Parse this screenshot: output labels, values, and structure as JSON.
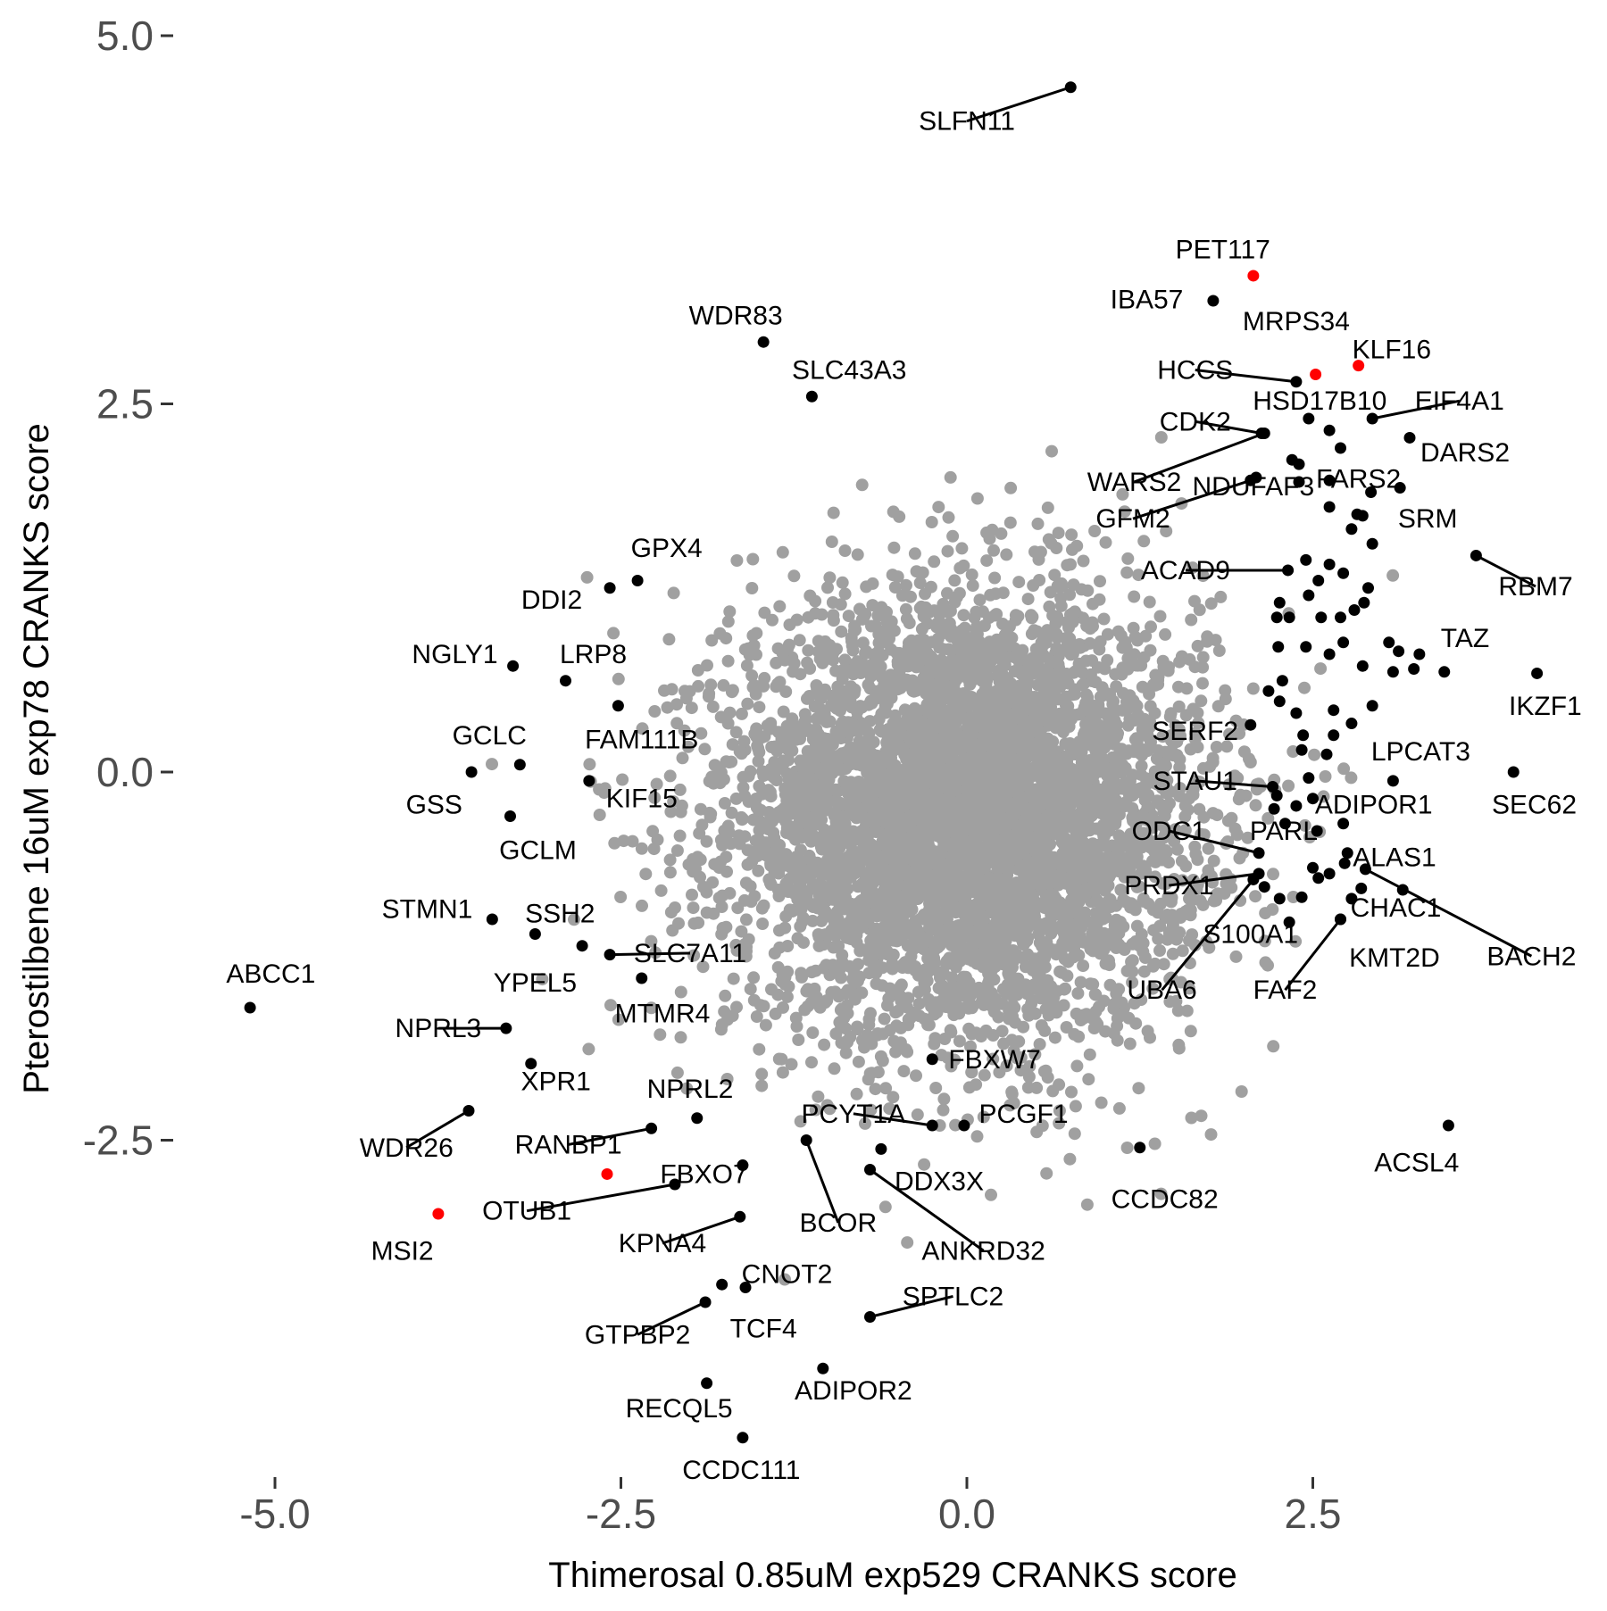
{
  "chart_data": {
    "type": "scatter",
    "title": "",
    "xlabel": "Thimerosal 0.85uM exp529 CRANKS score",
    "ylabel": "Pterostilbene 16uM exp78 CRANKS score",
    "xlim": [
      -5.2,
      4.2
    ],
    "ylim": [
      -4.85,
      5.0
    ],
    "xticks": [
      {
        "value": -5.0,
        "label": "-5.0"
      },
      {
        "value": -2.5,
        "label": "-2.5"
      },
      {
        "value": 0.0,
        "label": "0.0"
      },
      {
        "value": 2.5,
        "label": "2.5"
      }
    ],
    "yticks": [
      {
        "value": 5.0,
        "label": "5.0"
      },
      {
        "value": 2.5,
        "label": "2.5"
      },
      {
        "value": 0.0,
        "label": "0.0"
      },
      {
        "value": -2.5,
        "label": "-2.5"
      }
    ],
    "grid": false,
    "legend": "none",
    "colors": {
      "background": "#gray",
      "highlight": "#000000",
      "red": "#ff0000"
    },
    "background_cloud": {
      "description_color": "#a0a0a0",
      "center": [
        0,
        -0.3
      ],
      "sd": [
        0.85,
        0.75
      ]
    },
    "points": [
      {
        "name": "SLFN11",
        "x": 0.75,
        "y": 4.65,
        "color": "black",
        "lx": 0.0,
        "ly": 4.42
      },
      {
        "name": "PET117",
        "x": 2.07,
        "y": 3.37,
        "color": "red",
        "lx": 1.85,
        "ly": 3.55
      },
      {
        "name": "IBA57",
        "x": 1.78,
        "y": 3.2,
        "color": "black",
        "lx": 1.3,
        "ly": 3.21
      },
      {
        "name": "MRPS34",
        "x": 2.52,
        "y": 2.7,
        "color": "red",
        "lx": 2.38,
        "ly": 3.06
      },
      {
        "name": "KLF16",
        "x": 2.83,
        "y": 2.76,
        "color": "red",
        "lx": 3.07,
        "ly": 2.87
      },
      {
        "name": "WDR83",
        "x": -1.47,
        "y": 2.92,
        "color": "black",
        "lx": -1.67,
        "ly": 3.1
      },
      {
        "name": "SLC43A3",
        "x": -1.12,
        "y": 2.55,
        "color": "black",
        "lx": -0.85,
        "ly": 2.73
      },
      {
        "name": "HCCS",
        "x": 2.38,
        "y": 2.65,
        "color": "black",
        "lx": 1.65,
        "ly": 2.73
      },
      {
        "name": "HSD17B10",
        "x": 2.47,
        "y": 2.4,
        "color": "black",
        "lx": 2.55,
        "ly": 2.52
      },
      {
        "name": "EIF4A1",
        "x": 2.93,
        "y": 2.4,
        "color": "black",
        "lx": 3.56,
        "ly": 2.52
      },
      {
        "name": "CDK2",
        "x": 2.13,
        "y": 2.3,
        "color": "black",
        "lx": 1.65,
        "ly": 2.38
      },
      {
        "name": "DARS2",
        "x": 3.2,
        "y": 2.27,
        "color": "black",
        "lx": 3.6,
        "ly": 2.17
      },
      {
        "name": "WARS2",
        "x": 2.15,
        "y": 2.3,
        "color": "black",
        "lx": 1.21,
        "ly": 1.97
      },
      {
        "name": "NDUFAF3",
        "x": 2.09,
        "y": 2.0,
        "color": "black",
        "lx": 2.07,
        "ly": 1.94
      },
      {
        "name": "FARS2",
        "x": 3.13,
        "y": 1.93,
        "color": "black",
        "lx": 2.83,
        "ly": 1.99
      },
      {
        "name": "GFM2",
        "x": 2.05,
        "y": 1.98,
        "color": "black",
        "lx": 1.2,
        "ly": 1.72
      },
      {
        "name": "SRM",
        "x": 2.86,
        "y": 1.74,
        "color": "black",
        "lx": 3.33,
        "ly": 1.72
      },
      {
        "name": "ACAD9",
        "x": 2.32,
        "y": 1.37,
        "color": "black",
        "lx": 1.58,
        "ly": 1.37
      },
      {
        "name": "RBM7",
        "x": 3.68,
        "y": 1.47,
        "color": "black",
        "lx": 4.11,
        "ly": 1.26
      },
      {
        "name": "TAZ",
        "x": 3.27,
        "y": 0.8,
        "color": "black",
        "lx": 3.6,
        "ly": 0.91
      },
      {
        "name": "IKZF1",
        "x": 4.12,
        "y": 0.67,
        "color": "black",
        "lx": 4.18,
        "ly": 0.45
      },
      {
        "name": "GPX4",
        "x": -2.38,
        "y": 1.3,
        "color": "black",
        "lx": -2.17,
        "ly": 1.52
      },
      {
        "name": "DDI2",
        "x": -2.58,
        "y": 1.25,
        "color": "black",
        "lx": -3.0,
        "ly": 1.17
      },
      {
        "name": "NGLY1",
        "x": -3.28,
        "y": 0.72,
        "color": "black",
        "lx": -3.7,
        "ly": 0.8
      },
      {
        "name": "LRP8",
        "x": -2.9,
        "y": 0.62,
        "color": "black",
        "lx": -2.7,
        "ly": 0.8
      },
      {
        "name": "FAM111B",
        "x": -2.52,
        "y": 0.45,
        "color": "black",
        "lx": -2.35,
        "ly": 0.22
      },
      {
        "name": "GCLC",
        "x": -3.23,
        "y": 0.05,
        "color": "black",
        "lx": -3.45,
        "ly": 0.25
      },
      {
        "name": "GSS",
        "x": -3.58,
        "y": 0.0,
        "color": "black",
        "lx": -3.85,
        "ly": -0.22
      },
      {
        "name": "KIF15",
        "x": -2.73,
        "y": -0.06,
        "color": "black",
        "lx": -2.35,
        "ly": -0.18
      },
      {
        "name": "GCLM",
        "x": -3.3,
        "y": -0.3,
        "color": "black",
        "lx": -3.1,
        "ly": -0.53
      },
      {
        "name": "SERF2",
        "x": 2.05,
        "y": 0.32,
        "color": "black",
        "lx": 1.65,
        "ly": 0.28
      },
      {
        "name": "LPCAT3",
        "x": 3.08,
        "y": -0.06,
        "color": "black",
        "lx": 3.28,
        "ly": 0.14
      },
      {
        "name": "SEC62",
        "x": 3.95,
        "y": 0.0,
        "color": "black",
        "lx": 4.1,
        "ly": -0.22
      },
      {
        "name": "STAU1",
        "x": 2.21,
        "y": -0.1,
        "color": "black",
        "lx": 1.65,
        "ly": -0.06
      },
      {
        "name": "ADIPOR1",
        "x": 2.72,
        "y": -0.35,
        "color": "black",
        "lx": 2.94,
        "ly": -0.22
      },
      {
        "name": "ODC1",
        "x": 2.11,
        "y": -0.55,
        "color": "black",
        "lx": 1.46,
        "ly": -0.4
      },
      {
        "name": "PARL",
        "x": 2.53,
        "y": -0.4,
        "color": "black",
        "lx": 2.29,
        "ly": -0.4
      },
      {
        "name": "ALAS1",
        "x": 2.73,
        "y": -0.62,
        "color": "black",
        "lx": 3.09,
        "ly": -0.58
      },
      {
        "name": "PRDX1",
        "x": 2.11,
        "y": -0.69,
        "color": "black",
        "lx": 1.46,
        "ly": -0.77
      },
      {
        "name": "CHAC1",
        "x": 2.78,
        "y": -0.86,
        "color": "black",
        "lx": 3.1,
        "ly": -0.92
      },
      {
        "name": "S100A1",
        "x": 2.26,
        "y": -0.86,
        "color": "black",
        "lx": 2.05,
        "ly": -1.1
      },
      {
        "name": "BACH2",
        "x": 2.88,
        "y": -0.66,
        "color": "black",
        "lx": 4.08,
        "ly": -1.25
      },
      {
        "name": "KMT2D",
        "x": 2.7,
        "y": -1.0,
        "color": "black",
        "lx": 3.09,
        "ly": -1.26
      },
      {
        "name": "UBA6",
        "x": 2.07,
        "y": -0.73,
        "color": "black",
        "lx": 1.41,
        "ly": -1.48
      },
      {
        "name": "FAF2",
        "x": 2.7,
        "y": -1.0,
        "color": "black",
        "lx": 2.3,
        "ly": -1.48
      },
      {
        "name": "STMN1",
        "x": -3.43,
        "y": -1.0,
        "color": "black",
        "lx": -3.9,
        "ly": -0.93
      },
      {
        "name": "SSH2",
        "x": -3.12,
        "y": -1.1,
        "color": "black",
        "lx": -2.94,
        "ly": -0.96
      },
      {
        "name": "SLC7A11",
        "x": -2.58,
        "y": -1.24,
        "color": "black",
        "lx": -2.0,
        "ly": -1.23
      },
      {
        "name": "ABCC1",
        "x": -5.18,
        "y": -1.6,
        "color": "black",
        "lx": -5.03,
        "ly": -1.37
      },
      {
        "name": "YPEL5",
        "x": -2.78,
        "y": -1.18,
        "color": "black",
        "lx": -3.12,
        "ly": -1.43
      },
      {
        "name": "MTMR4",
        "x": -2.35,
        "y": -1.4,
        "color": "black",
        "lx": -2.2,
        "ly": -1.64
      },
      {
        "name": "NPRL3",
        "x": -3.33,
        "y": -1.74,
        "color": "black",
        "lx": -3.82,
        "ly": -1.74
      },
      {
        "name": "XPR1",
        "x": -3.15,
        "y": -1.98,
        "color": "black",
        "lx": -2.97,
        "ly": -2.1
      },
      {
        "name": "WDR26",
        "x": -3.6,
        "y": -2.3,
        "color": "black",
        "lx": -4.05,
        "ly": -2.55
      },
      {
        "name": "NPRL2",
        "x": -1.95,
        "y": -2.35,
        "color": "black",
        "lx": -2.0,
        "ly": -2.15
      },
      {
        "name": "FBXW7",
        "x": -0.25,
        "y": -1.95,
        "color": "black",
        "lx": 0.2,
        "ly": -1.95
      },
      {
        "name": "PCYT1A",
        "x": -0.25,
        "y": -2.4,
        "color": "black",
        "lx": -0.82,
        "ly": -2.32
      },
      {
        "name": "PCGF1",
        "x": -0.02,
        "y": -2.4,
        "color": "black",
        "lx": 0.41,
        "ly": -2.32
      },
      {
        "name": "RANBP1",
        "x": -2.28,
        "y": -2.42,
        "color": "black",
        "lx": -2.88,
        "ly": -2.53
      },
      {
        "name": "FBXO7",
        "x": -1.62,
        "y": -2.67,
        "color": "black",
        "lx": -1.9,
        "ly": -2.73
      },
      {
        "name": "DDX3X",
        "x": -0.62,
        "y": -2.56,
        "color": "black",
        "lx": -0.2,
        "ly": -2.78
      },
      {
        "name": "CCDC82",
        "x": 1.25,
        "y": -2.55,
        "color": "black",
        "lx": 1.43,
        "ly": -2.9
      },
      {
        "name": "ACSL4",
        "x": 3.48,
        "y": -2.4,
        "color": "black",
        "lx": 3.25,
        "ly": -2.65
      },
      {
        "name": "OTUB1",
        "x": -2.11,
        "y": -2.8,
        "color": "black",
        "lx": -3.18,
        "ly": -2.98
      },
      {
        "name": "MSI2",
        "x": -3.82,
        "y": -3.0,
        "color": "red",
        "lx": -4.08,
        "ly": -3.25
      },
      {
        "name": "KPNA4",
        "x": -1.64,
        "y": -3.02,
        "color": "black",
        "lx": -2.2,
        "ly": -3.2
      },
      {
        "name": "BCOR",
        "x": -1.16,
        "y": -2.5,
        "color": "black",
        "lx": -0.93,
        "ly": -3.06
      },
      {
        "name": "ANKRD32",
        "x": -0.7,
        "y": -2.7,
        "color": "black",
        "lx": 0.12,
        "ly": -3.25
      },
      {
        "name": "CNOT2",
        "x": -1.6,
        "y": -3.5,
        "color": "black",
        "lx": -1.3,
        "ly": -3.41
      },
      {
        "name": "SPTLC2",
        "x": -0.7,
        "y": -3.7,
        "color": "black",
        "lx": -0.1,
        "ly": -3.56
      },
      {
        "name": "GTPBP2",
        "x": -1.89,
        "y": -3.6,
        "color": "black",
        "lx": -2.38,
        "ly": -3.82
      },
      {
        "name": "TCF4",
        "x": -1.77,
        "y": -3.48,
        "color": "black",
        "lx": -1.47,
        "ly": -3.78
      },
      {
        "name": "ADIPOR2",
        "x": -1.04,
        "y": -4.05,
        "color": "black",
        "lx": -0.82,
        "ly": -4.2
      },
      {
        "name": "RECQL5",
        "x": -1.88,
        "y": -4.15,
        "color": "black",
        "lx": -2.08,
        "ly": -4.32
      },
      {
        "name": "CCDC111",
        "x": -1.62,
        "y": -4.52,
        "color": "black",
        "lx": -1.63,
        "ly": -4.74
      },
      {
        "name": "",
        "x": -2.6,
        "y": -2.73,
        "color": "red"
      }
    ],
    "extra_black_points": [
      [
        2.35,
        2.12
      ],
      [
        2.62,
        2.32
      ],
      [
        2.7,
        2.2
      ],
      [
        2.4,
        2.09
      ],
      [
        2.62,
        1.98
      ],
      [
        2.82,
        1.75
      ],
      [
        2.62,
        1.8
      ],
      [
        2.4,
        1.97
      ],
      [
        2.92,
        1.9
      ],
      [
        2.45,
        1.44
      ],
      [
        2.62,
        1.41
      ],
      [
        2.87,
        1.15
      ],
      [
        2.54,
        1.3
      ],
      [
        2.72,
        1.35
      ],
      [
        2.78,
        1.65
      ],
      [
        2.93,
        1.55
      ],
      [
        2.24,
        1.05
      ],
      [
        2.26,
        1.15
      ],
      [
        2.47,
        1.2
      ],
      [
        2.33,
        1.05
      ],
      [
        2.56,
        1.05
      ],
      [
        2.7,
        1.05
      ],
      [
        2.8,
        1.1
      ],
      [
        2.9,
        1.25
      ],
      [
        2.25,
        0.85
      ],
      [
        2.45,
        0.85
      ],
      [
        2.62,
        0.8
      ],
      [
        2.72,
        0.88
      ],
      [
        3.05,
        0.88
      ],
      [
        3.12,
        0.82
      ],
      [
        2.86,
        0.72
      ],
      [
        3.08,
        0.68
      ],
      [
        3.23,
        0.7
      ],
      [
        3.45,
        0.68
      ],
      [
        2.28,
        0.62
      ],
      [
        2.38,
        0.4
      ],
      [
        2.43,
        0.25
      ],
      [
        2.65,
        0.25
      ],
      [
        2.78,
        0.33
      ],
      [
        2.93,
        0.45
      ],
      [
        2.6,
        0.12
      ],
      [
        2.65,
        0.42
      ],
      [
        2.18,
        0.55
      ],
      [
        2.26,
        0.48
      ],
      [
        2.42,
        0.15
      ],
      [
        2.47,
        -0.04
      ],
      [
        2.24,
        -0.16
      ],
      [
        2.22,
        -0.25
      ],
      [
        2.5,
        -0.18
      ],
      [
        2.3,
        -0.35
      ],
      [
        2.38,
        -0.23
      ],
      [
        2.5,
        -0.65
      ],
      [
        2.75,
        -0.55
      ],
      [
        2.62,
        -0.69
      ],
      [
        2.85,
        -0.79
      ],
      [
        2.42,
        -0.85
      ],
      [
        2.54,
        -0.72
      ],
      [
        2.15,
        -0.78
      ],
      [
        3.15,
        -0.8
      ],
      [
        2.33,
        -1.02
      ]
    ]
  }
}
